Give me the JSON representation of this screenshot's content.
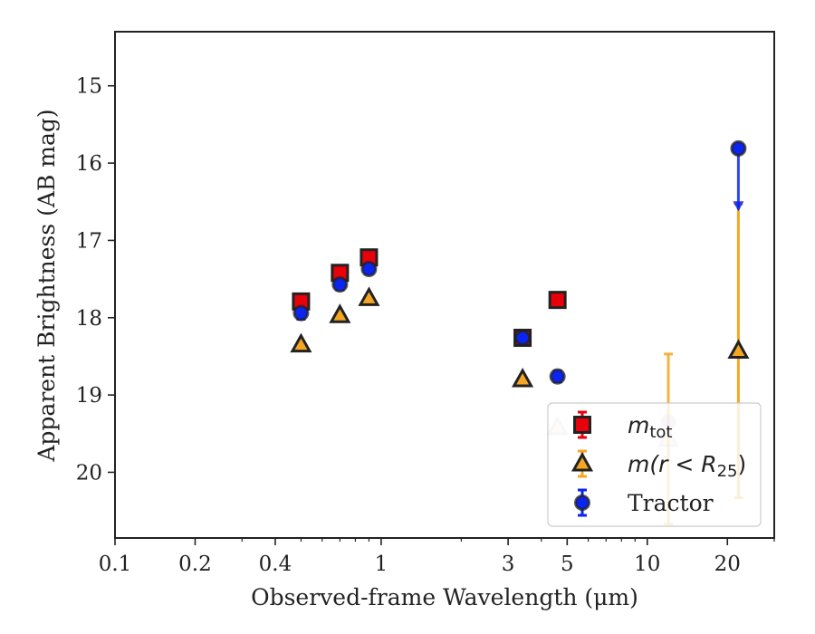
{
  "chart_data": {
    "type": "scatter",
    "xlabel": "Observed-frame Wavelength (μm)",
    "ylabel": "Apparent Brightness (AB mag)",
    "x_scale": "log",
    "xlim": [
      0.1,
      30
    ],
    "ylim": [
      20.85,
      14.3
    ],
    "y_inverted": true,
    "x_ticks": [
      0.1,
      0.2,
      0.4,
      1,
      3,
      5,
      10,
      20
    ],
    "x_tick_labels": [
      "0.1",
      "0.2",
      "0.4",
      "1",
      "3",
      "5",
      "10",
      "20"
    ],
    "y_ticks": [
      15,
      16,
      17,
      18,
      19,
      20
    ],
    "y_tick_labels": [
      "15",
      "16",
      "17",
      "18",
      "19",
      "20"
    ],
    "legend_position": "lower right",
    "series": [
      {
        "key": "mtot",
        "name": "m_tot",
        "legend_main": "m",
        "legend_sub": "tot",
        "marker": "square",
        "color": "#e8000b",
        "edgecolor": "#222222",
        "points": [
          {
            "x": 0.5,
            "y": 17.79,
            "yerr": 0.08
          },
          {
            "x": 0.7,
            "y": 17.42,
            "yerr": 0.06
          },
          {
            "x": 0.9,
            "y": 17.22,
            "yerr": 0.06
          },
          {
            "x": 3.4,
            "y": 18.26,
            "yerr": 0.06
          },
          {
            "x": 4.6,
            "y": 17.77,
            "yerr": 0.05
          }
        ]
      },
      {
        "key": "mr25",
        "name": "m(r < R_25)",
        "legend_main": "m(r < R",
        "legend_sub": "25",
        "legend_tail": ")",
        "marker": "triangle",
        "color": "#f5a623",
        "edgecolor": "#222222",
        "points": [
          {
            "x": 0.5,
            "y": 18.35,
            "yerr": 0.0
          },
          {
            "x": 0.7,
            "y": 17.97,
            "yerr": 0.0
          },
          {
            "x": 0.9,
            "y": 17.75,
            "yerr": 0.0
          },
          {
            "x": 3.4,
            "y": 18.8,
            "yerr": 0.0
          },
          {
            "x": 4.6,
            "y": 19.42,
            "yerr": 0.0,
            "faded": true
          },
          {
            "x": 12.0,
            "y": 19.57,
            "yerr_low": 1.1,
            "yerr_high": 1.1,
            "faded": true
          },
          {
            "x": 22.0,
            "y": 18.43,
            "yerr_low": 1.9,
            "yerr_high": 1.9
          }
        ]
      },
      {
        "key": "tractor",
        "name": "Tractor",
        "legend_main": "Tractor",
        "marker": "circle",
        "color": "#0b24f0",
        "edgecolor": "#222222",
        "points": [
          {
            "x": 0.5,
            "y": 17.94,
            "yerr": 0.08
          },
          {
            "x": 0.7,
            "y": 17.57,
            "yerr": 0.07
          },
          {
            "x": 0.9,
            "y": 17.37,
            "yerr": 0.06
          },
          {
            "x": 3.4,
            "y": 18.26,
            "yerr": 0.06
          },
          {
            "x": 4.6,
            "y": 18.76,
            "yerr": 0.07
          },
          {
            "x": 12.0,
            "y": 19.35,
            "yerr": 0.0,
            "faded": true
          },
          {
            "x": 22.0,
            "y": 15.81,
            "upper_limit_to": 16.6
          }
        ]
      }
    ]
  }
}
